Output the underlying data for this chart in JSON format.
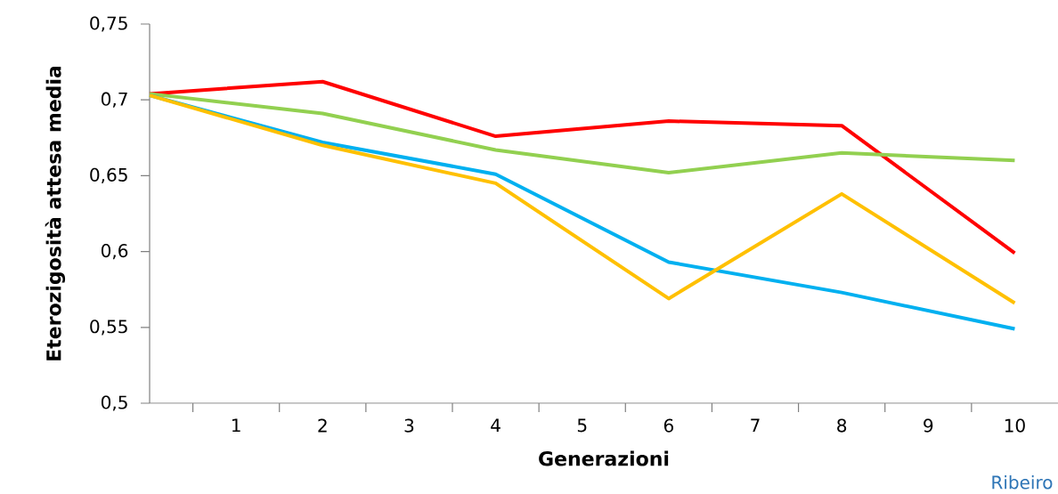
{
  "chart_data": {
    "type": "line",
    "xlabel": "Generazioni",
    "ylabel": "Eterozigosità attesa media",
    "x": [
      0,
      2,
      4,
      6,
      8,
      10
    ],
    "series": [
      {
        "color": "#ff0000",
        "values": [
          0.704,
          0.712,
          0.676,
          0.686,
          0.683,
          0.599
        ]
      },
      {
        "color": "#92d050",
        "values": [
          0.704,
          0.691,
          0.667,
          0.652,
          0.665,
          0.66
        ]
      },
      {
        "color": "#00b0f0",
        "values": [
          0.703,
          0.672,
          0.651,
          0.593,
          0.573,
          0.549
        ]
      },
      {
        "color": "#ffc000",
        "values": [
          0.703,
          0.67,
          0.645,
          0.569,
          0.638,
          0.566
        ]
      }
    ],
    "xlim": [
      0,
      10.5
    ],
    "xticks": [
      1,
      2,
      3,
      4,
      5,
      6,
      7,
      8,
      9,
      10,
      {
        "value": 0.5,
        "label": null
      },
      {
        "value": 1.5,
        "label": null
      },
      {
        "value": 2.5,
        "label": null
      },
      {
        "value": 3.5,
        "label": null
      },
      {
        "value": 4.5,
        "label": null
      },
      {
        "value": 5.5,
        "label": null
      },
      {
        "value": 6.5,
        "label": null
      },
      {
        "value": 7.5,
        "label": null
      },
      {
        "value": 8.5,
        "label": null
      },
      {
        "value": 9.5,
        "label": null
      }
    ],
    "ylim": [
      0.5,
      0.75
    ],
    "yticks": [
      {
        "value": 0.5,
        "label": "0,5"
      },
      {
        "value": 0.55,
        "label": "0,55"
      },
      {
        "value": 0.6,
        "label": "0,6"
      },
      {
        "value": 0.65,
        "label": "0,65"
      },
      {
        "value": 0.7,
        "label": "0,7"
      },
      {
        "value": 0.75,
        "label": "0,75"
      }
    ],
    "grid": false,
    "marker": "none",
    "line_style": "solid",
    "annotations": [
      "Ribeiro"
    ]
  }
}
